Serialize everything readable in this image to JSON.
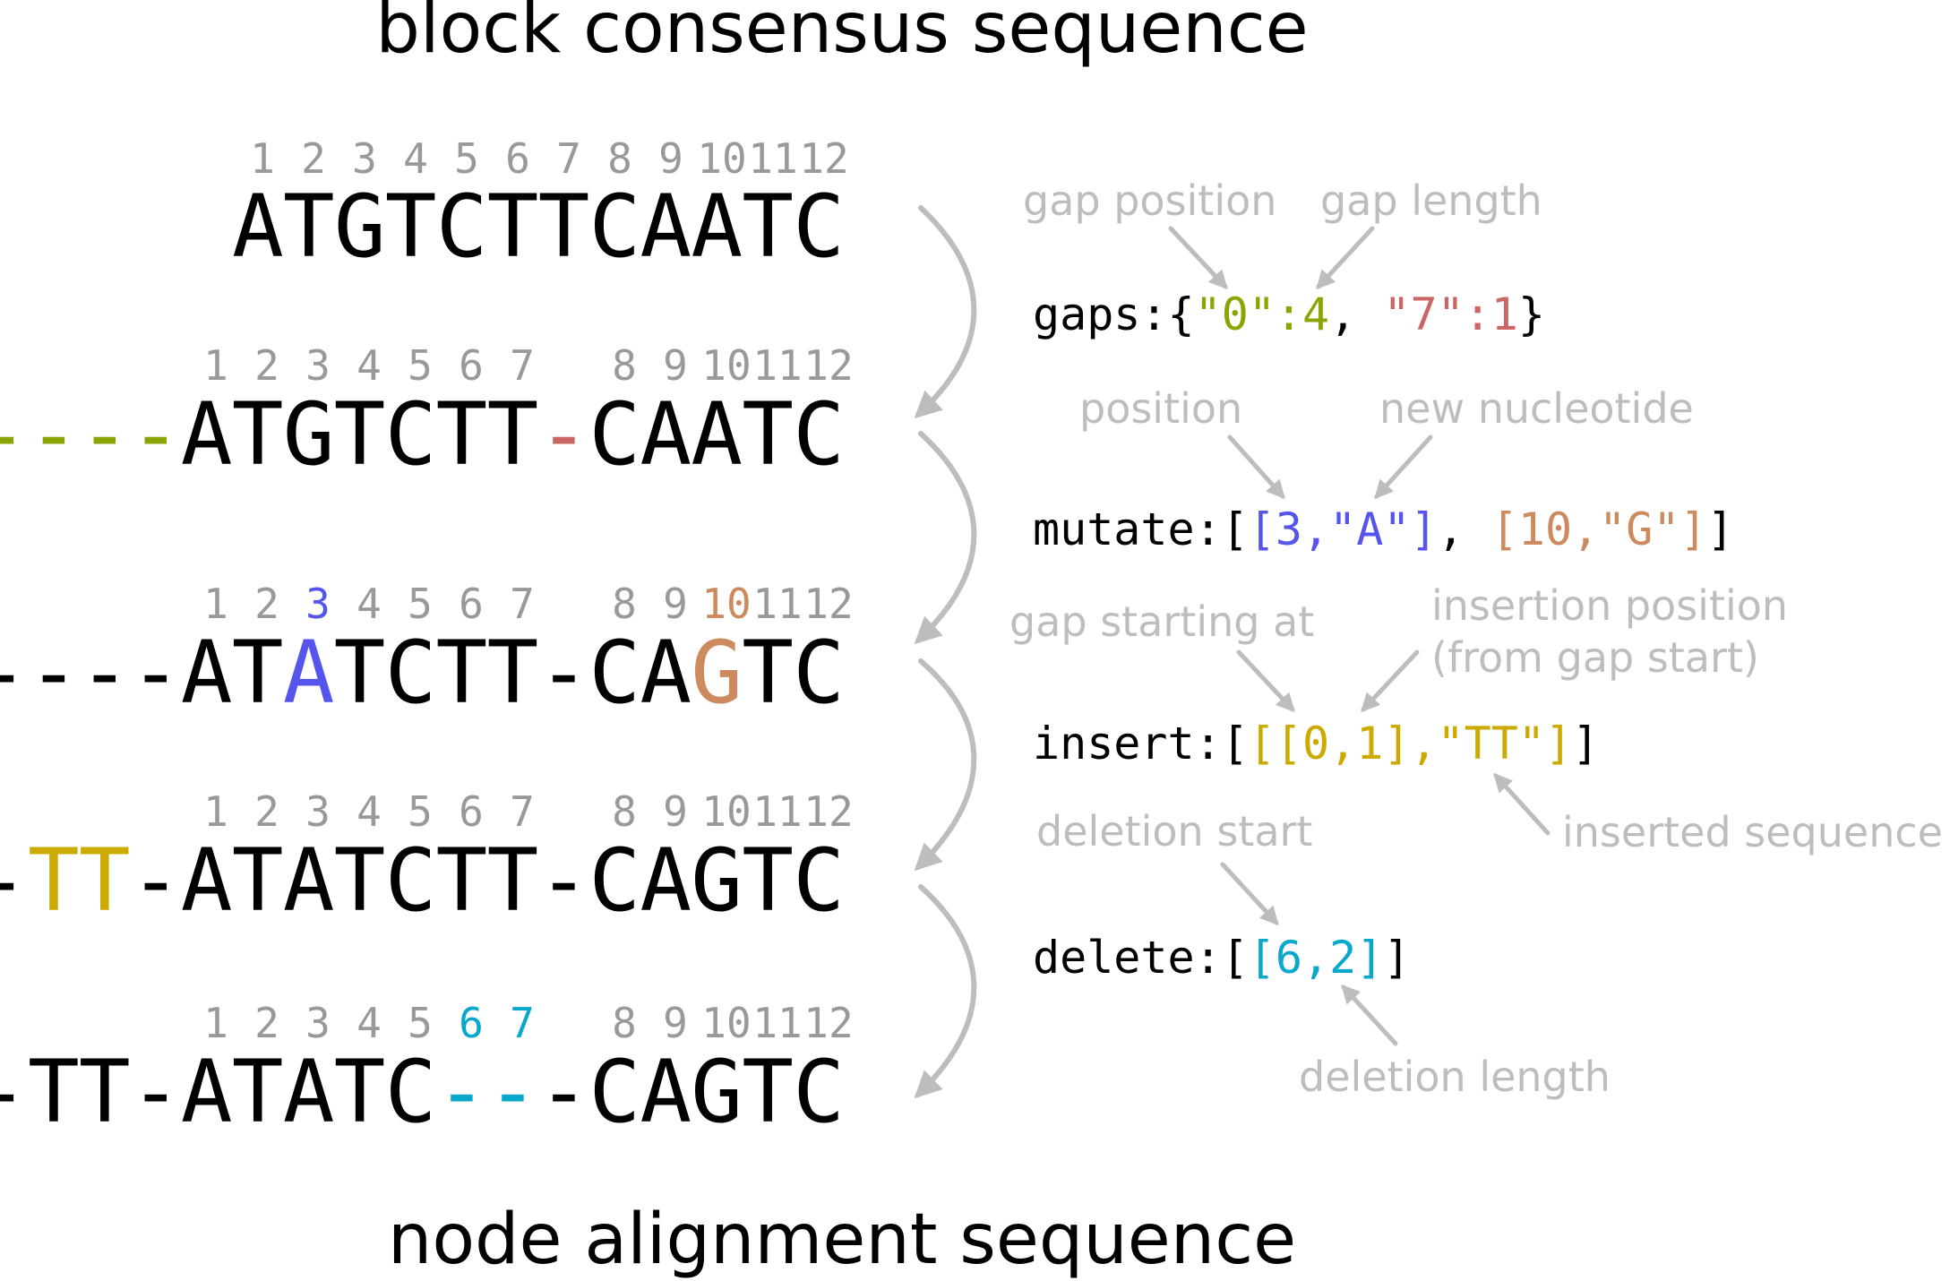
{
  "title_top": "block consensus sequence",
  "title_bottom": "node alignment sequence",
  "index_rows": [
    [
      "1",
      "2",
      "3",
      "4",
      "5",
      "6",
      "7",
      "8",
      "9",
      "10",
      "11",
      "12"
    ],
    [
      "1",
      "2",
      "3",
      "4",
      "5",
      "6",
      "7",
      "8",
      "9",
      "10",
      "11",
      "12"
    ],
    [
      "1",
      "2",
      "3",
      "4",
      "5",
      "6",
      "7",
      "8",
      "9",
      "10",
      "11",
      "12"
    ],
    [
      "1",
      "2",
      "3",
      "4",
      "5",
      "6",
      "7",
      "8",
      "9",
      "10",
      "11",
      "12"
    ],
    [
      "1",
      "2",
      "3",
      "4",
      "5",
      "6",
      "7",
      "8",
      "9",
      "10",
      "11",
      "12"
    ]
  ],
  "sequences": [
    "ATGTCTTCAATC",
    "----ATGTCTT-CAATC",
    "----ATATCTT-CAGTC",
    "-TT-ATATCTT-CAGTC",
    "-TT-ATATC---CAGTC"
  ],
  "colors": {
    "gap_start": "#8aa500",
    "gap_seven": "#cc6666",
    "mutate_a": "#5555ee",
    "mutate_g": "#cc8a5e",
    "insert": "#ccaa00",
    "delete": "#0aa7cc",
    "annotation": "#bdbdbd",
    "index": "#999999"
  },
  "ops": {
    "gaps": {
      "label": "gaps:",
      "open": "{",
      "p1": "\"0\":4",
      "sep": ", ",
      "p2": "\"7\":1",
      "close": "}"
    },
    "mutate": {
      "label": "mutate:",
      "open": "[",
      "p1": "[3,\"A\"]",
      "sep": ", ",
      "p2": "[10,\"G\"]",
      "close": "]"
    },
    "insert": {
      "label": "insert:",
      "open": "[",
      "p1": "[[0,1],\"TT\"]",
      "close": "]"
    },
    "delete": {
      "label": "delete:",
      "open": "[",
      "p1": "[6,2]",
      "close": "]"
    }
  },
  "annotations": {
    "gap_position": "gap position",
    "gap_length": "gap length",
    "position": "position",
    "new_nucleotide": "new nucleotide",
    "gap_starting_at": "gap starting at",
    "insertion_position_1": "insertion position",
    "insertion_position_2": "(from gap start)",
    "inserted_sequence": "inserted sequence",
    "deletion_start": "deletion start",
    "deletion_length": "deletion length"
  }
}
